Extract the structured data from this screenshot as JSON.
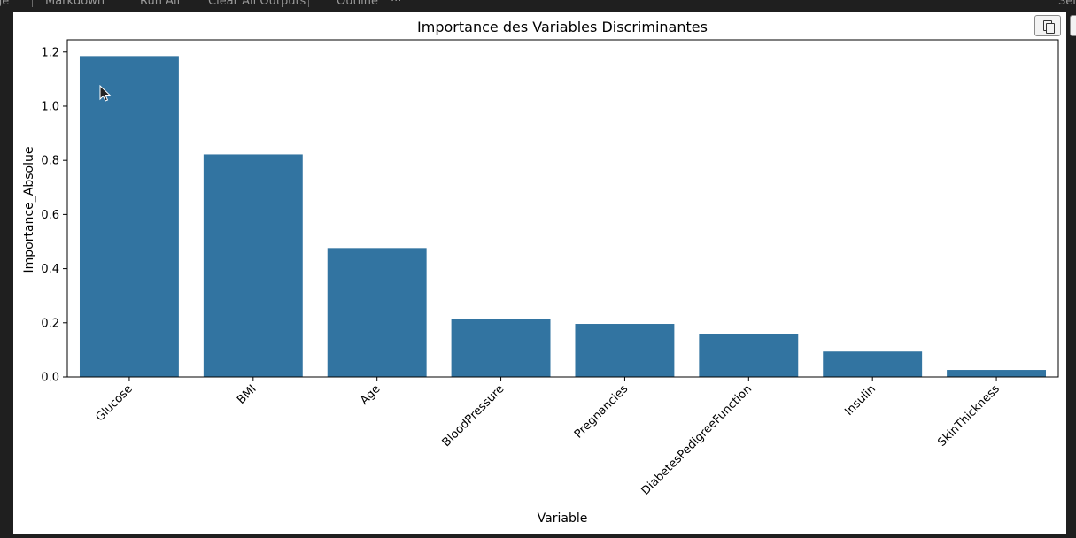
{
  "toolbar": {
    "items": [
      "ge",
      "Markdown",
      "Run All",
      "Clear All Outputs",
      "Outline",
      "···",
      "Sel"
    ]
  },
  "icons": {
    "copy": "copy-icon",
    "cursor": "mouse-pointer-icon"
  },
  "colors": {
    "bar": "#3274a1",
    "background": "#ffffff",
    "editor_background": "#1f1f1f"
  },
  "chart_data": {
    "type": "bar",
    "title": "Importance des Variables Discriminantes",
    "xlabel": "Variable",
    "ylabel": "Importance_Absolue",
    "categories": [
      "Glucose",
      "BMI",
      "Age",
      "BloodPressure",
      "Pregnancies",
      "DiabetesPedigreeFunction",
      "Insulin",
      "SkinThickness"
    ],
    "values": [
      1.185,
      0.822,
      0.476,
      0.215,
      0.196,
      0.157,
      0.094,
      0.026
    ],
    "ylim": [
      0,
      1.245
    ],
    "yticks": [
      "0.0",
      "0.2",
      "0.4",
      "0.6",
      "0.8",
      "1.0",
      "1.2"
    ],
    "grid": false,
    "legend": "none"
  }
}
